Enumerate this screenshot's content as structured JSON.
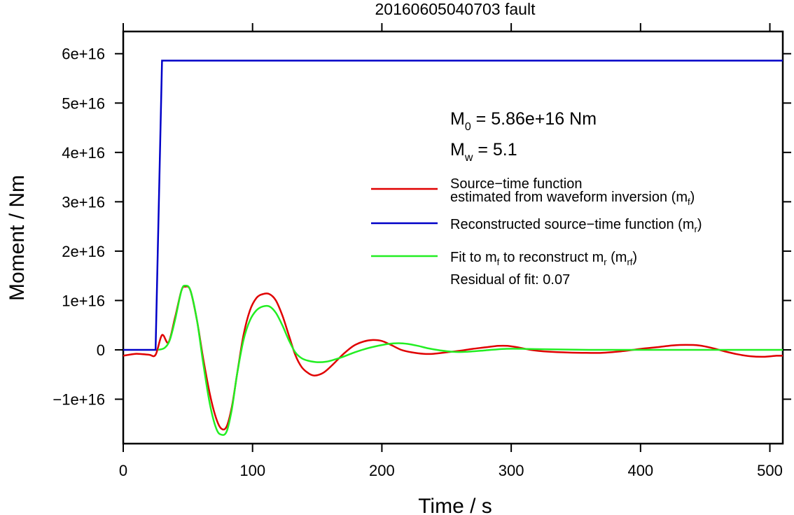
{
  "chart_data": {
    "type": "line",
    "title": "20160605040703 fault",
    "xlabel": "Time / s",
    "ylabel": "Moment / Nm",
    "xlim": [
      0,
      510
    ],
    "ylim": [
      -1.9e+16,
      6.45e+16
    ],
    "x_ticks": [
      0,
      100,
      200,
      300,
      400,
      500
    ],
    "x_tick_labels": [
      "0",
      "100",
      "200",
      "300",
      "400",
      "500"
    ],
    "y_ticks": [
      -1e+16,
      0,
      1e+16,
      2e+16,
      3e+16,
      4e+16,
      5e+16,
      6e+16
    ],
    "y_tick_labels": [
      "−1e+16",
      "0",
      "1e+16",
      "2e+16",
      "3e+16",
      "4e+16",
      "5e+16",
      "6e+16"
    ],
    "grid": false,
    "legend_position": "right",
    "colors": {
      "red": "#e00000",
      "blue": "#0000c8",
      "green": "#22ee22"
    },
    "annotations": {
      "m0_main": "M",
      "m0_sub": "0",
      "m0_rest": " = 5.86e+16 Nm",
      "mw_main": "M",
      "mw_sub": "w",
      "mw_rest": " = 5.1",
      "residual": "Residual of fit: 0.07"
    },
    "legend": {
      "red_line1": "Source−time function",
      "red_line2": "estimated from waveform inversion (m",
      "red_sub": "f",
      "red_close": ")",
      "blue_text": "Reconstructed source−time function (m",
      "blue_sub": "r",
      "blue_close": ")",
      "green_text1": "Fit to m",
      "green_sub1": "f",
      "green_text2": " to reconstruct m",
      "green_sub2": "r",
      "green_text3": " (m",
      "green_sub3": "rf",
      "green_close": ")"
    },
    "series": [
      {
        "color": "red",
        "x": [
          0,
          10,
          20,
          25,
          30,
          35,
          40,
          45,
          48,
          52,
          57,
          62,
          67,
          72,
          76,
          80,
          84,
          88,
          93,
          98,
          103,
          108,
          113,
          118,
          123,
          128,
          133,
          138,
          143,
          148,
          155,
          162,
          170,
          178,
          186,
          193,
          200,
          207,
          215,
          223,
          232,
          240,
          250,
          260,
          270,
          280,
          290,
          297,
          305,
          315,
          325,
          340,
          355,
          370,
          385,
          400,
          415,
          425,
          435,
          445,
          455,
          465,
          475,
          485,
          495,
          505,
          510
        ],
        "y": [
          -1200000000000000.0,
          -800000000000000.0,
          -1000000000000000.0,
          -1000000000000000.0,
          3000000000000000.0,
          1500000000000000.0,
          6500000000000000.0,
          1.2e+16,
          1.28e+16,
          1.2e+16,
          6000000000000000.0,
          -2000000000000000.0,
          -9000000000000000.0,
          -1.4e+16,
          -1.6e+16,
          -1.55e+16,
          -1.15e+16,
          -5000000000000000.0,
          3000000000000000.0,
          8000000000000000.0,
          1.05e+16,
          1.13e+16,
          1.13e+16,
          1e+16,
          7000000000000000.0,
          3000000000000000.0,
          -1000000000000000.0,
          -3500000000000000.0,
          -4700000000000000.0,
          -5200000000000000.0,
          -4600000000000000.0,
          -3000000000000000.0,
          -900000000000000.0,
          800000000000000.0,
          1700000000000000.0,
          2000000000000000.0,
          1800000000000000.0,
          1000000000000000.0,
          0,
          -500000000000000.0,
          -800000000000000.0,
          -800000000000000.0,
          -500000000000000.0,
          -200000000000000.0,
          200000000000000.0,
          500000000000000.0,
          800000000000000.0,
          800000000000000.0,
          500000000000000.0,
          0,
          -300000000000000.0,
          -500000000000000.0,
          -600000000000000.0,
          -600000000000000.0,
          -300000000000000.0,
          200000000000000.0,
          600000000000000.0,
          900000000000000.0,
          1000000000000000.0,
          900000000000000.0,
          400000000000000.0,
          -300000000000000.0,
          -900000000000000.0,
          -1300000000000000.0,
          -1400000000000000.0,
          -1200000000000000.0,
          -1200000000000000.0
        ]
      },
      {
        "color": "blue",
        "x": [
          0,
          25,
          30,
          510
        ],
        "y": [
          0,
          0,
          5.86e+16,
          5.86e+16
        ]
      },
      {
        "color": "green",
        "x": [
          27,
          32,
          36,
          40,
          45,
          48,
          52,
          57,
          62,
          67,
          72,
          76,
          80,
          84,
          88,
          93,
          98,
          103,
          108,
          113,
          118,
          123,
          128,
          133,
          138,
          143,
          150,
          157,
          163,
          170,
          178,
          186,
          195,
          205,
          213,
          220,
          228,
          236,
          245,
          255,
          265,
          280,
          295,
          310,
          330,
          360,
          400,
          450,
          510
        ],
        "y": [
          0,
          400000000000000.0,
          2000000000000000.0,
          6000000000000000.0,
          1.2e+16,
          1.3e+16,
          1.2e+16,
          6000000000000000.0,
          -3000000000000000.0,
          -1.1e+16,
          -1.6e+16,
          -1.72e+16,
          -1.65e+16,
          -1.2e+16,
          -5000000000000000.0,
          2000000000000000.0,
          6000000000000000.0,
          8000000000000000.0,
          8800000000000000.0,
          8800000000000000.0,
          7500000000000000.0,
          5000000000000000.0,
          2000000000000000.0,
          -500000000000000.0,
          -1700000000000000.0,
          -2200000000000000.0,
          -2500000000000000.0,
          -2400000000000000.0,
          -2000000000000000.0,
          -1400000000000000.0,
          -600000000000000.0,
          100000000000000.0,
          700000000000000.0,
          1200000000000000.0,
          1350000000000000.0,
          1200000000000000.0,
          800000000000000.0,
          300000000000000.0,
          -100000000000000.0,
          -400000000000000.0,
          -400000000000000.0,
          -100000000000000.0,
          200000000000000.0,
          200000000000000.0,
          100000000000000.0,
          0,
          0,
          0,
          0
        ]
      }
    ]
  }
}
